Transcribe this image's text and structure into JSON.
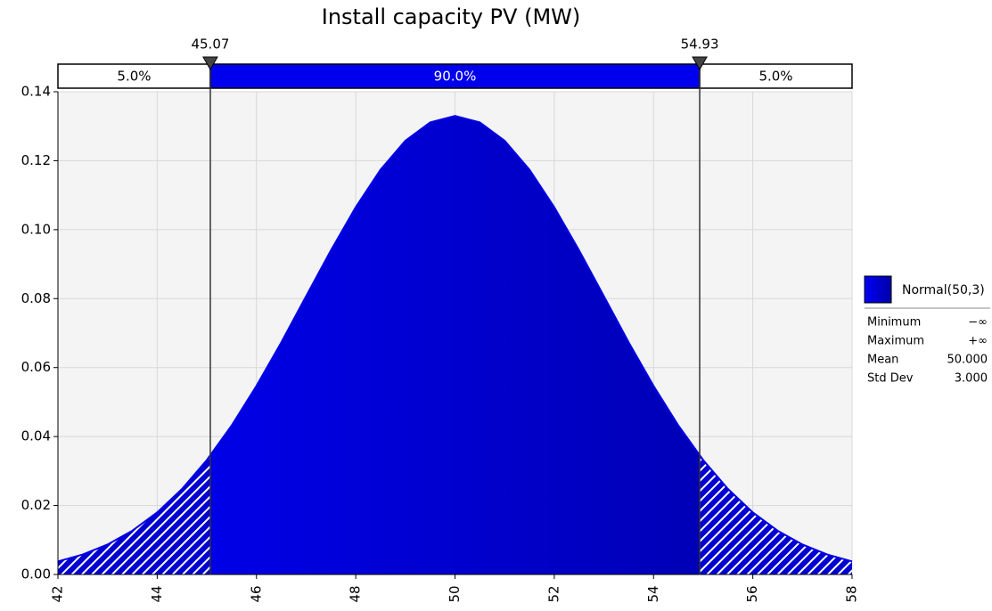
{
  "chart_data": {
    "type": "area",
    "title": "Install capacity PV (MW)",
    "x": [
      42,
      42.5,
      43,
      43.5,
      44,
      44.5,
      45,
      45.5,
      46,
      46.5,
      47,
      47.5,
      48,
      48.5,
      49,
      49.5,
      50,
      50.5,
      51,
      51.5,
      52,
      52.5,
      53,
      53.5,
      54,
      54.5,
      55,
      55.5,
      56,
      56.5,
      57,
      57.5,
      58
    ],
    "series": [
      {
        "name": "Normal(50,3)",
        "color": "#0000e6",
        "values": [
          0.0038,
          0.0058,
          0.0087,
          0.0127,
          0.018,
          0.0248,
          0.0332,
          0.0432,
          0.0547,
          0.0673,
          0.0807,
          0.094,
          0.1065,
          0.1174,
          0.1258,
          0.1311,
          0.133,
          0.1311,
          0.1258,
          0.1174,
          0.1065,
          0.094,
          0.0807,
          0.0673,
          0.0547,
          0.0432,
          0.0332,
          0.0248,
          0.018,
          0.0127,
          0.0087,
          0.0058,
          0.0038
        ]
      }
    ],
    "delimiters": [
      45.07,
      54.93
    ],
    "region_percents": [
      5,
      90,
      5
    ],
    "region_labels": [
      "5.0%",
      "90.0%",
      "5.0%"
    ],
    "xlim": [
      42,
      58
    ],
    "xticks": [
      42,
      44,
      46,
      48,
      50,
      52,
      54,
      56,
      58
    ],
    "ylim": [
      0,
      0.14
    ],
    "yticks": [
      {
        "value": 0,
        "label": "0.00"
      },
      {
        "value": 0.02,
        "label": "0.02"
      },
      {
        "value": 0.04,
        "label": "0.04"
      },
      {
        "value": 0.06,
        "label": "0.06"
      },
      {
        "value": 0.08,
        "label": "0.08"
      },
      {
        "value": 0.1,
        "label": "0.10"
      },
      {
        "value": 0.12,
        "label": "0.12"
      },
      {
        "value": 0.14,
        "label": "0.14"
      }
    ],
    "grid": true,
    "legend_position": "right",
    "stats": [
      {
        "name": "Minimum",
        "value": "−∞"
      },
      {
        "name": "Maximum",
        "value": "+∞"
      },
      {
        "name": "Mean",
        "value": "50.000"
      },
      {
        "name": "Std Dev",
        "value": "3.000"
      }
    ]
  }
}
